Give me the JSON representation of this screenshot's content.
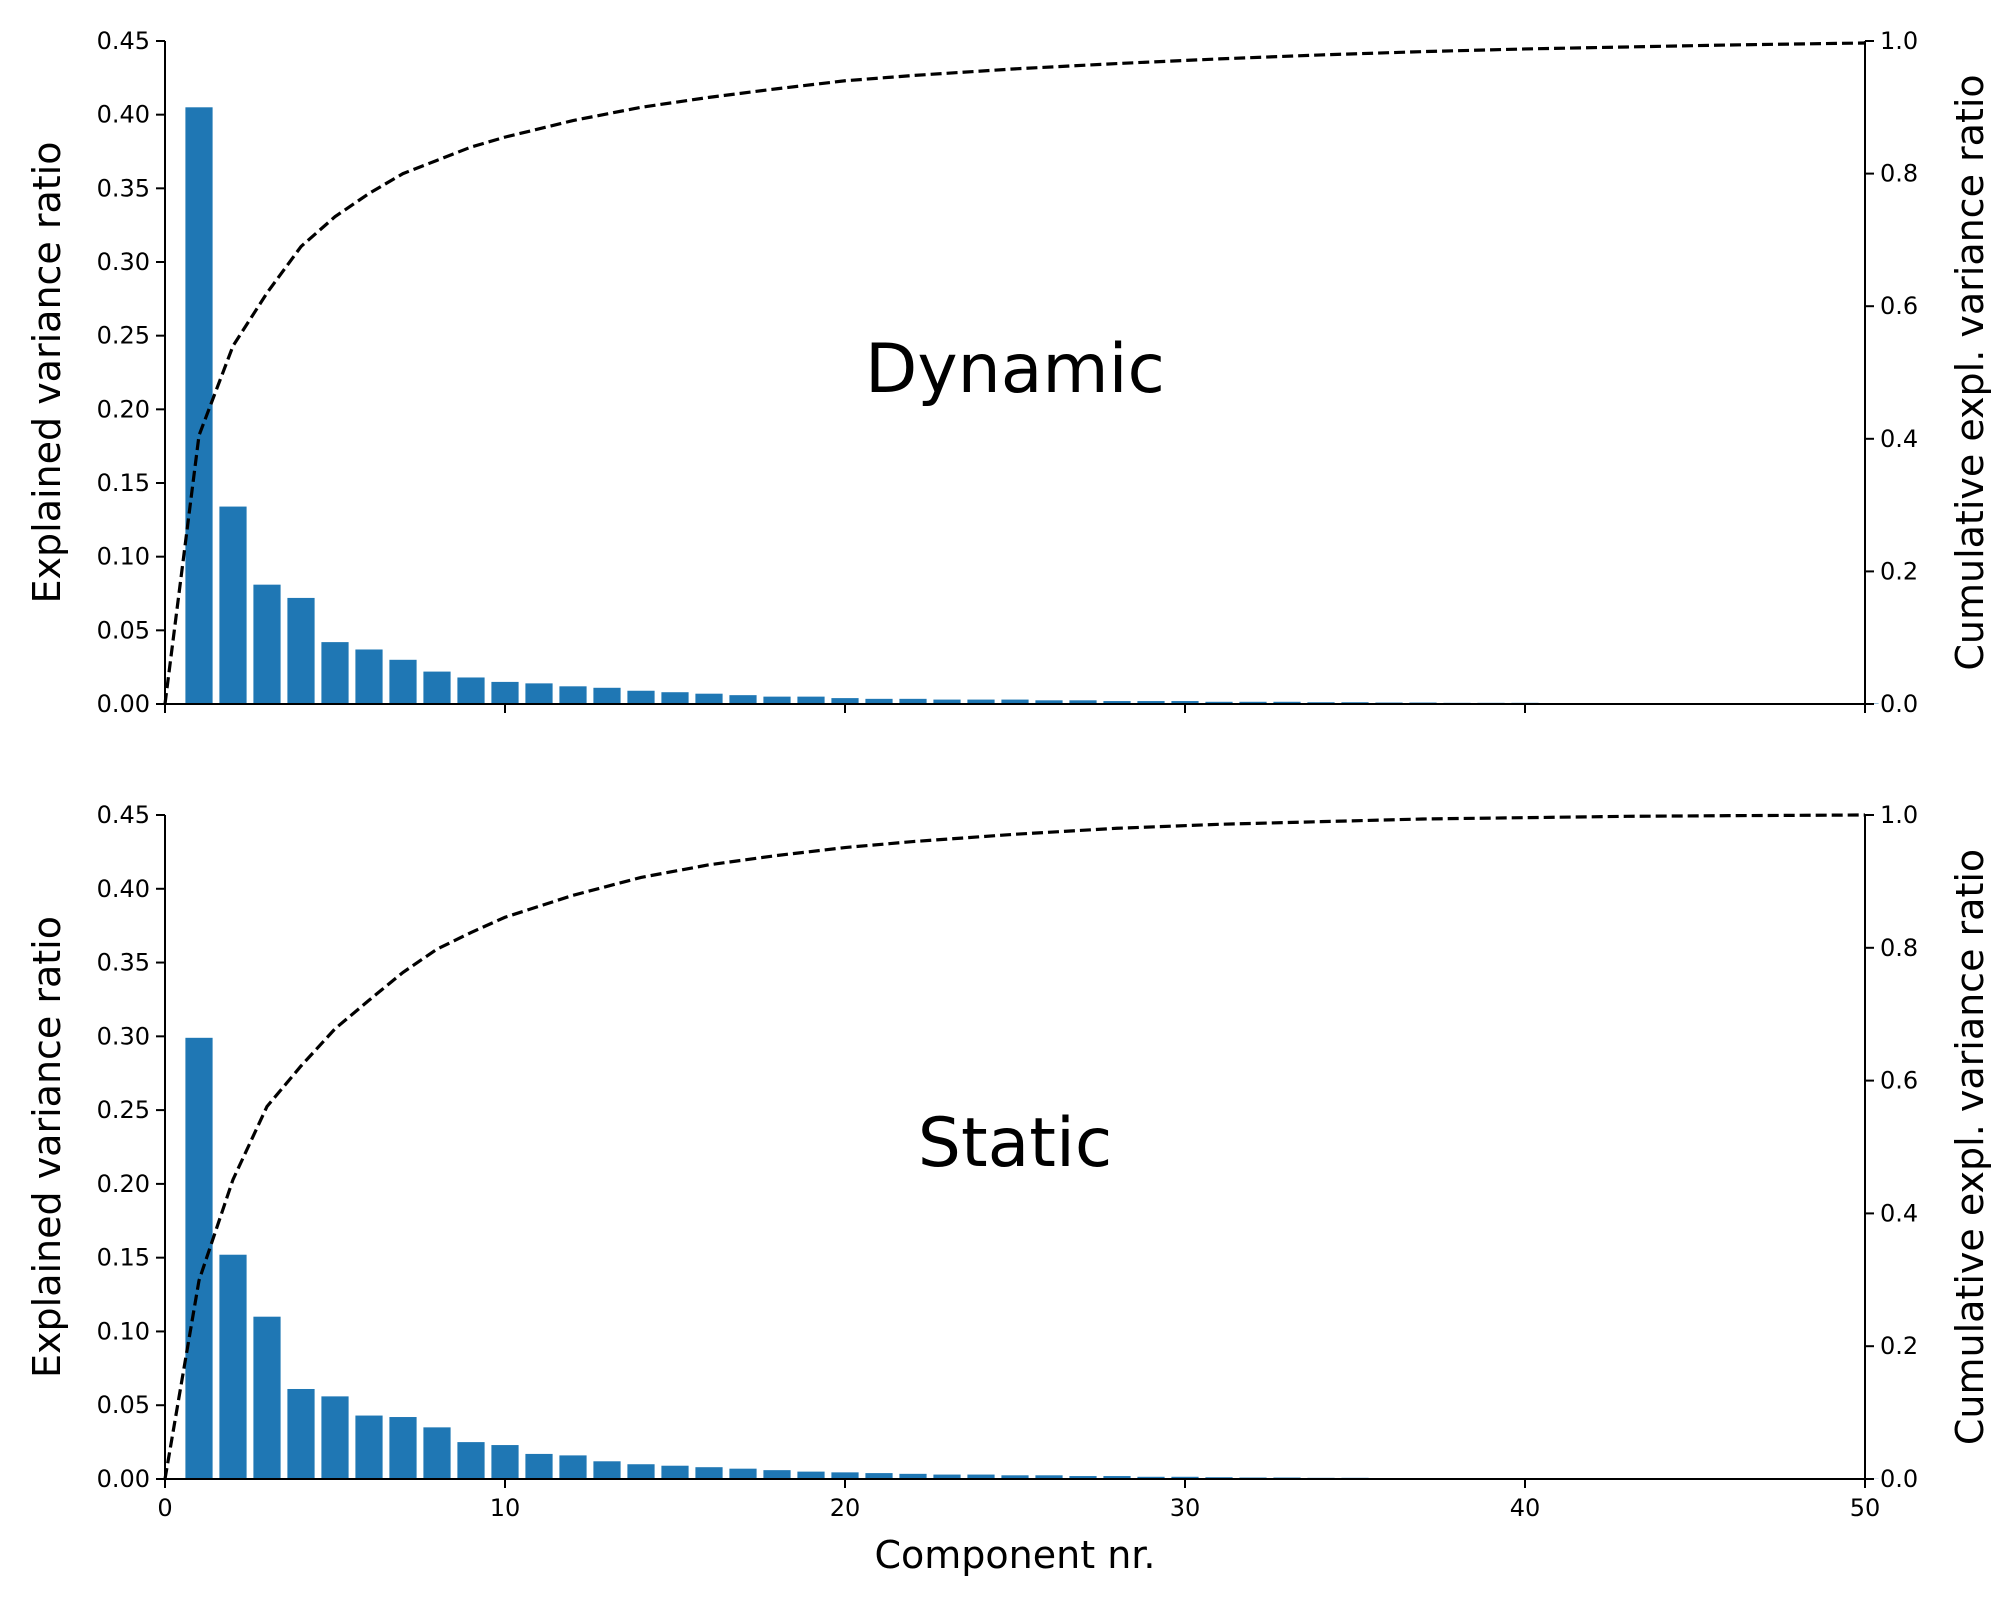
{
  "chart_data": [
    {
      "type": "bar",
      "title": "Dynamic",
      "xlabel": "",
      "ylabel": "Explained variance ratio",
      "y2label": "Cumulative expl. variance ratio",
      "xlim": [
        0,
        50
      ],
      "ylim": [
        0,
        0.45
      ],
      "y2lim": [
        0,
        1.0
      ],
      "xticks": [
        0,
        10,
        20,
        30,
        40,
        50
      ],
      "xtick_labels_visible": false,
      "yticks": [
        0.0,
        0.05,
        0.1,
        0.15,
        0.2,
        0.25,
        0.3,
        0.35,
        0.4,
        0.45
      ],
      "ytick_labels": [
        "0.00",
        "0.05",
        "0.10",
        "0.15",
        "0.20",
        "0.25",
        "0.30",
        "0.35",
        "0.40",
        "0.45"
      ],
      "y2ticks": [
        0.0,
        0.2,
        0.4,
        0.6,
        0.8,
        1.0
      ],
      "y2tick_labels": [
        "0.0",
        "0.2",
        "0.4",
        "0.6",
        "0.8",
        "1.0"
      ],
      "grid": false,
      "bar_color": "#1f77b4",
      "line_color": "#000000",
      "line_style": "dashed",
      "x": [
        1,
        2,
        3,
        4,
        5,
        6,
        7,
        8,
        9,
        10,
        11,
        12,
        13,
        14,
        15,
        16,
        17,
        18,
        19,
        20,
        21,
        22,
        23,
        24,
        25,
        26,
        27,
        28,
        29,
        30,
        31,
        32,
        33,
        34,
        35,
        36,
        37,
        38,
        39,
        40,
        41,
        42,
        43,
        44,
        45,
        46,
        47,
        48,
        49,
        50
      ],
      "values": [
        0.405,
        0.134,
        0.081,
        0.072,
        0.042,
        0.037,
        0.03,
        0.022,
        0.018,
        0.015,
        0.014,
        0.012,
        0.011,
        0.009,
        0.008,
        0.007,
        0.006,
        0.005,
        0.005,
        0.004,
        0.0035,
        0.0035,
        0.003,
        0.003,
        0.003,
        0.0025,
        0.0025,
        0.002,
        0.002,
        0.002,
        0.0015,
        0.0015,
        0.0015,
        0.0012,
        0.0012,
        0.001,
        0.001,
        0.0008,
        0.0008,
        0.0008,
        0.0006,
        0.0006,
        0.0006,
        0.0005,
        0.0005,
        0.0004,
        0.0004,
        0.0004,
        0.0003,
        0.0003
      ],
      "cumulative": {
        "x": [
          0,
          1,
          2,
          3,
          4,
          5,
          6,
          7,
          8,
          9,
          10,
          12,
          14,
          16,
          18,
          20,
          22,
          25,
          28,
          31,
          34,
          37,
          40,
          43,
          46,
          50
        ],
        "values": [
          0.0,
          0.405,
          0.54,
          0.62,
          0.69,
          0.735,
          0.77,
          0.8,
          0.82,
          0.84,
          0.855,
          0.88,
          0.9,
          0.915,
          0.928,
          0.94,
          0.948,
          0.958,
          0.966,
          0.973,
          0.979,
          0.984,
          0.988,
          0.991,
          0.994,
          0.997
        ]
      }
    },
    {
      "type": "bar",
      "title": "Static",
      "xlabel": "Component nr.",
      "ylabel": "Explained variance ratio",
      "y2label": "Cumulative expl. variance ratio",
      "xlim": [
        0,
        50
      ],
      "ylim": [
        0,
        0.45
      ],
      "y2lim": [
        0,
        1.0
      ],
      "xticks": [
        0,
        10,
        20,
        30,
        40,
        50
      ],
      "xtick_labels_visible": true,
      "xtick_labels": [
        "0",
        "10",
        "20",
        "30",
        "40",
        "50"
      ],
      "yticks": [
        0.0,
        0.05,
        0.1,
        0.15,
        0.2,
        0.25,
        0.3,
        0.35,
        0.4,
        0.45
      ],
      "ytick_labels": [
        "0.00",
        "0.05",
        "0.10",
        "0.15",
        "0.20",
        "0.25",
        "0.30",
        "0.35",
        "0.40",
        "0.45"
      ],
      "y2ticks": [
        0.0,
        0.2,
        0.4,
        0.6,
        0.8,
        1.0
      ],
      "y2tick_labels": [
        "0.0",
        "0.2",
        "0.4",
        "0.6",
        "0.8",
        "1.0"
      ],
      "grid": false,
      "bar_color": "#1f77b4",
      "line_color": "#000000",
      "line_style": "dashed",
      "x": [
        1,
        2,
        3,
        4,
        5,
        6,
        7,
        8,
        9,
        10,
        11,
        12,
        13,
        14,
        15,
        16,
        17,
        18,
        19,
        20,
        21,
        22,
        23,
        24,
        25,
        26,
        27,
        28,
        29,
        30,
        31,
        32,
        33,
        34,
        35,
        36,
        37,
        38,
        39,
        40,
        41,
        42,
        43,
        44,
        45,
        46,
        47,
        48,
        49,
        50
      ],
      "values": [
        0.299,
        0.152,
        0.11,
        0.061,
        0.056,
        0.043,
        0.042,
        0.035,
        0.025,
        0.023,
        0.017,
        0.016,
        0.012,
        0.01,
        0.009,
        0.008,
        0.007,
        0.006,
        0.005,
        0.0045,
        0.004,
        0.0035,
        0.003,
        0.003,
        0.0025,
        0.0025,
        0.002,
        0.002,
        0.0015,
        0.0015,
        0.0012,
        0.001,
        0.001,
        0.0008,
        0.0008,
        0.0006,
        0.0006,
        0.0005,
        0.0005,
        0.0004,
        0.0004,
        0.0003,
        0.0003,
        0.0003,
        0.0002,
        0.0002,
        0.0002,
        0.0002,
        0.0001,
        0.0001
      ],
      "cumulative": {
        "x": [
          0,
          1,
          2,
          3,
          4,
          5,
          6,
          7,
          8,
          9,
          10,
          12,
          14,
          16,
          18,
          20,
          22,
          25,
          28,
          31,
          34,
          37,
          40,
          43,
          46,
          50
        ],
        "values": [
          0.0,
          0.299,
          0.451,
          0.561,
          0.622,
          0.678,
          0.721,
          0.763,
          0.798,
          0.823,
          0.846,
          0.879,
          0.906,
          0.925,
          0.939,
          0.951,
          0.96,
          0.971,
          0.98,
          0.986,
          0.99,
          0.994,
          0.996,
          0.998,
          0.999,
          1.0
        ]
      }
    }
  ]
}
